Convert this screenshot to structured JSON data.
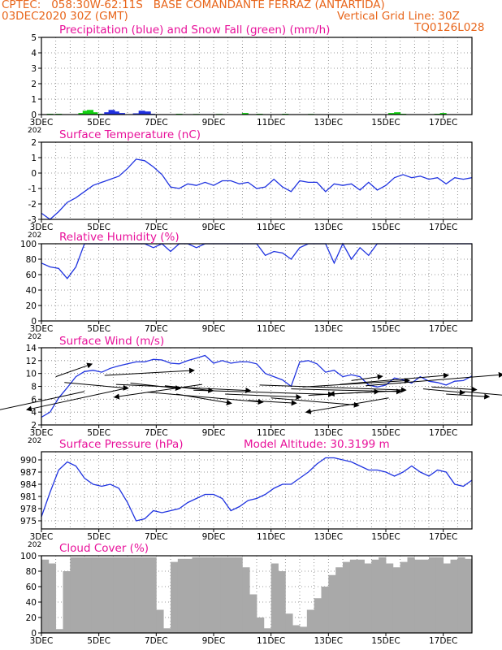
{
  "header": {
    "line1_left": "CPTEC:   058:30W-62:11S   BASE COMANDANTE FERRAZ (ANTARTIDA)",
    "line2_left": "03DEC2020 30Z (GMT)",
    "line2_right": "Vertical Grid Line: 30Z",
    "line3_right": "TQ0126L028"
  },
  "x_ticks": [
    "3DEC",
    "5DEC",
    "7DEC",
    "9DEC",
    "11DEC",
    "13DEC",
    "15DEC",
    "17DEC"
  ],
  "year_stub": "202",
  "colors": {
    "title": "#e8119a",
    "header": "#e8651a",
    "line": "#2034e0",
    "rain": "#2030e0",
    "snow": "#10d010",
    "arrow": "#000000",
    "cloud": "#a9a9a9"
  },
  "chart_data": [
    {
      "id": "precip",
      "type": "bar",
      "title": "Precipitation (blue) and Snow Fall (green) (mm/h)",
      "ylim": [
        0,
        5
      ],
      "yticks": [
        "0",
        "1",
        "2",
        "3",
        "4",
        "5"
      ],
      "xlim": [
        0,
        15
      ],
      "series": [
        {
          "name": "rain",
          "values": [
            [
              2.1,
              0.05
            ],
            [
              2.3,
              0.15
            ],
            [
              2.45,
              0.3
            ],
            [
              2.6,
              0.2
            ],
            [
              2.8,
              0.1
            ],
            [
              3.3,
              0.08
            ],
            [
              3.5,
              0.25
            ],
            [
              3.7,
              0.2
            ],
            [
              3.85,
              0.05
            ]
          ]
        },
        {
          "name": "snow",
          "values": [
            [
              0.3,
              0.05
            ],
            [
              0.6,
              0.05
            ],
            [
              1.4,
              0.1
            ],
            [
              1.55,
              0.25
            ],
            [
              1.7,
              0.3
            ],
            [
              1.85,
              0.15
            ],
            [
              2.0,
              0.05
            ],
            [
              4.8,
              0.05
            ],
            [
              5.4,
              0.04
            ],
            [
              6.2,
              0.04
            ],
            [
              7.1,
              0.1
            ],
            [
              7.6,
              0.05
            ],
            [
              8.5,
              0.05
            ],
            [
              9.4,
              0.04
            ],
            [
              12.2,
              0.1
            ],
            [
              12.4,
              0.15
            ],
            [
              12.6,
              0.05
            ],
            [
              13.8,
              0.05
            ],
            [
              14.0,
              0.1
            ]
          ]
        }
      ]
    },
    {
      "id": "temp",
      "type": "line",
      "title": "Surface Temperature (nC)",
      "ylim": [
        -3,
        2
      ],
      "yticks": [
        "-3",
        "-2",
        "-1",
        "0",
        "1",
        "2"
      ],
      "xlim": [
        0,
        15
      ],
      "x": [
        0,
        0.3,
        0.6,
        0.9,
        1.2,
        1.5,
        1.8,
        2.1,
        2.4,
        2.7,
        3,
        3.3,
        3.6,
        3.9,
        4.2,
        4.5,
        4.8,
        5.1,
        5.4,
        5.7,
        6,
        6.3,
        6.6,
        6.9,
        7.2,
        7.5,
        7.8,
        8.1,
        8.4,
        8.7,
        9,
        9.3,
        9.6,
        9.9,
        10.2,
        10.5,
        10.8,
        11.1,
        11.4,
        11.7,
        12,
        12.3,
        12.6,
        12.9,
        13.2,
        13.5,
        13.8,
        14.1,
        14.4,
        14.7,
        15
      ],
      "values": [
        -2.6,
        -3.1,
        -2.5,
        -1.9,
        -1.6,
        -1.2,
        -0.8,
        -0.6,
        -0.4,
        -0.2,
        0.3,
        0.9,
        0.8,
        0.4,
        -0.1,
        -0.9,
        -1,
        -0.7,
        -0.8,
        -0.6,
        -0.8,
        -0.5,
        -0.5,
        -0.7,
        -0.6,
        -1,
        -0.9,
        -0.4,
        -0.9,
        -1.2,
        -0.5,
        -0.6,
        -0.6,
        -1.2,
        -0.7,
        -0.8,
        -0.7,
        -1.1,
        -0.6,
        -1.1,
        -0.8,
        -0.3,
        -0.1,
        -0.3,
        -0.2,
        -0.4,
        -0.3,
        -0.7,
        -0.3,
        -0.4,
        -0.3
      ]
    },
    {
      "id": "rh",
      "type": "line",
      "title": "Relative Humidity (%)",
      "ylim": [
        0,
        100
      ],
      "yticks": [
        "0",
        "20",
        "40",
        "60",
        "80",
        "100"
      ],
      "xlim": [
        0,
        15
      ],
      "x": [
        0,
        0.3,
        0.6,
        0.9,
        1.2,
        1.5,
        1.8,
        2.1,
        2.4,
        2.7,
        3,
        3.3,
        3.6,
        3.9,
        4.2,
        4.5,
        4.8,
        5.1,
        5.4,
        5.7,
        6,
        6.3,
        6.6,
        6.9,
        7.2,
        7.5,
        7.8,
        8.1,
        8.4,
        8.7,
        9,
        9.3,
        9.6,
        9.9,
        10.2,
        10.5,
        10.8,
        11.1,
        11.4,
        11.7,
        12,
        12.3,
        12.6,
        12.9,
        13.2,
        13.5,
        13.8,
        14.1,
        14.4,
        14.7,
        15
      ],
      "values": [
        75,
        70,
        68,
        55,
        70,
        100,
        100,
        100,
        100,
        100,
        100,
        100,
        100,
        95,
        100,
        90,
        100,
        100,
        95,
        100,
        100,
        100,
        100,
        100,
        100,
        100,
        85,
        90,
        88,
        80,
        95,
        100,
        100,
        100,
        75,
        100,
        80,
        95,
        85,
        100,
        100,
        100,
        100,
        100,
        100,
        100,
        100,
        100,
        100,
        100,
        100
      ]
    },
    {
      "id": "wind",
      "type": "line",
      "title": "Surface Wind (m/s)",
      "ylim": [
        2,
        14
      ],
      "yticks": [
        "2",
        "4",
        "6",
        "8",
        "10",
        "12",
        "14"
      ],
      "xlim": [
        0,
        15
      ],
      "x": [
        0,
        0.3,
        0.6,
        0.9,
        1.2,
        1.5,
        1.8,
        2.1,
        2.4,
        2.7,
        3,
        3.3,
        3.6,
        3.9,
        4.2,
        4.5,
        4.8,
        5.1,
        5.4,
        5.7,
        6,
        6.3,
        6.6,
        6.9,
        7.2,
        7.5,
        7.8,
        8.1,
        8.4,
        8.7,
        9,
        9.3,
        9.6,
        9.9,
        10.2,
        10.5,
        10.8,
        11.1,
        11.4,
        11.7,
        12,
        12.3,
        12.6,
        12.9,
        13.2,
        13.5,
        13.8,
        14.1,
        14.4,
        14.7,
        15
      ],
      "values": [
        3.2,
        4,
        6.2,
        7.8,
        9.5,
        10.3,
        10.5,
        10.2,
        10.8,
        11.2,
        11.5,
        11.8,
        11.8,
        12.2,
        12.1,
        11.6,
        11.5,
        12,
        12.4,
        12.8,
        11.6,
        12,
        11.6,
        11.8,
        11.8,
        11.5,
        10,
        9.5,
        9,
        8,
        11.8,
        12,
        11.5,
        10.2,
        10.5,
        9.5,
        9.8,
        9.5,
        8.2,
        7.9,
        8.2,
        9.3,
        9,
        8.5,
        9.5,
        8.8,
        8.6,
        8.2,
        8.8,
        8.9,
        9.6
      ],
      "arrows": [
        [
          0.5,
          9.5,
          2.1,
          3.3
        ],
        [
          0.8,
          8.6,
          3.7,
          -1.5
        ],
        [
          1.5,
          7.2,
          -5.5,
          -5.3
        ],
        [
          2.2,
          9.7,
          5.2,
          1.3
        ],
        [
          2.6,
          8.3,
          7.8,
          -1.6
        ],
        [
          2.85,
          7.6,
          -5.6,
          -5.4
        ],
        [
          3.1,
          8.5,
          2.9,
          -1.4
        ],
        [
          3.7,
          7.1,
          6.7,
          -2.6
        ],
        [
          4.3,
          8.1,
          2.8,
          -1.3
        ],
        [
          4.7,
          6.8,
          3.2,
          -2.4
        ],
        [
          5.3,
          7.4,
          8.1,
          -1.1
        ],
        [
          5.6,
          8.3,
          -5.1,
          -3.3
        ],
        [
          6.4,
          6.8,
          4.4,
          -0.8
        ],
        [
          7.2,
          5.8,
          2.8,
          -0.7
        ],
        [
          7.6,
          8.2,
          8.5,
          -1.3
        ],
        [
          8.0,
          6.2,
          5.1,
          -1.9
        ],
        [
          8.7,
          7.6,
          6.4,
          -0.7
        ],
        [
          9.1,
          7.9,
          6.2,
          1.7
        ],
        [
          9.3,
          6.6,
          4.1,
          1.0
        ],
        [
          10.4,
          8.3,
          6.3,
          2.4
        ],
        [
          10.8,
          8.9,
          1.8,
          1.1
        ],
        [
          11.3,
          8.1,
          8.0,
          2.9
        ],
        [
          12.1,
          6.2,
          -4.8,
          -3.7
        ],
        [
          12.5,
          7.3,
          -4.1,
          -0.8
        ],
        [
          13.3,
          7.6,
          2.4,
          -1.0
        ],
        [
          13.6,
          7.9,
          2.6,
          -0.7
        ],
        [
          14.1,
          6.8,
          2.5,
          -0.7
        ],
        [
          14.7,
          7.2,
          4.3,
          -1.8
        ]
      ]
    },
    {
      "id": "pres",
      "type": "line",
      "title": "Surface Pressure (hPa)",
      "annotation": "Model Altitude: 30.3199 m",
      "ylim": [
        973,
        992
      ],
      "yticks": [
        "975",
        "978",
        "981",
        "984",
        "987",
        "990"
      ],
      "xlim": [
        0,
        15
      ],
      "x": [
        0,
        0.3,
        0.6,
        0.9,
        1.2,
        1.5,
        1.8,
        2.1,
        2.4,
        2.7,
        3,
        3.3,
        3.6,
        3.9,
        4.2,
        4.5,
        4.8,
        5.1,
        5.4,
        5.7,
        6,
        6.3,
        6.6,
        6.9,
        7.2,
        7.5,
        7.8,
        8.1,
        8.4,
        8.7,
        9,
        9.3,
        9.6,
        9.9,
        10.2,
        10.5,
        10.8,
        11.1,
        11.4,
        11.7,
        12,
        12.3,
        12.6,
        12.9,
        13.2,
        13.5,
        13.8,
        14.1,
        14.4,
        14.7,
        15
      ],
      "values": [
        976,
        982,
        987.5,
        989.5,
        988.5,
        985.5,
        984,
        983.5,
        984,
        983,
        979.5,
        975,
        975.5,
        977.5,
        977,
        977.5,
        978,
        979.5,
        980.5,
        981.5,
        981.5,
        980.5,
        977.5,
        978.5,
        980,
        980.5,
        981.5,
        983,
        984,
        984,
        985.5,
        987,
        989,
        990.5,
        990.5,
        990,
        989.5,
        988.5,
        987.5,
        987.5,
        987,
        986,
        987,
        988.5,
        987,
        986,
        987.5,
        987,
        984,
        983.5,
        985
      ]
    },
    {
      "id": "cloud",
      "type": "bar",
      "title": "Cloud Cover (%)",
      "ylim": [
        0,
        100
      ],
      "yticks": [
        "0",
        "20",
        "40",
        "60",
        "80",
        "100"
      ],
      "xlim": [
        0,
        15
      ],
      "x": [
        0,
        0.25,
        0.5,
        0.75,
        1,
        1.25,
        1.5,
        1.75,
        2,
        2.25,
        2.5,
        2.75,
        3,
        3.25,
        3.5,
        3.75,
        4,
        4.25,
        4.5,
        4.75,
        5,
        5.25,
        5.5,
        5.75,
        6,
        6.25,
        6.5,
        6.75,
        7,
        7.25,
        7.5,
        7.75,
        8,
        8.25,
        8.5,
        8.75,
        9,
        9.25,
        9.5,
        9.75,
        10,
        10.25,
        10.5,
        10.75,
        11,
        11.25,
        11.5,
        11.75,
        12,
        12.25,
        12.5,
        12.75,
        13,
        13.25,
        13.5,
        13.75,
        14,
        14.25,
        14.5,
        14.75
      ],
      "values": [
        95,
        90,
        5,
        80,
        98,
        98,
        98,
        98,
        98,
        98,
        98,
        98,
        98,
        98,
        98,
        98,
        30,
        6,
        92,
        96,
        96,
        98,
        98,
        98,
        98,
        98,
        98,
        98,
        85,
        50,
        20,
        6,
        90,
        80,
        25,
        10,
        8,
        30,
        45,
        60,
        75,
        85,
        92,
        95,
        95,
        90,
        95,
        98,
        90,
        85,
        92,
        98,
        95,
        95,
        98,
        98,
        90,
        95,
        98,
        96
      ]
    }
  ]
}
